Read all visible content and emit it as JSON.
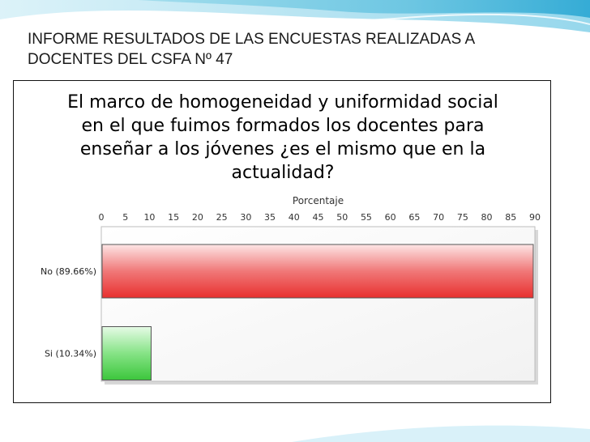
{
  "slide": {
    "title_line1": "INFORME RESULTADOS DE LAS ENCUESTAS REALIZADAS A",
    "title_line2": "DOCENTES DEL  CSFA Nº 47"
  },
  "chart_data": {
    "type": "bar",
    "orientation": "horizontal",
    "title_lines": [
      "El marco de homogeneidad y uniformidad social",
      "en el que fuimos formados los docentes para",
      "enseñar a los jóvenes ¿es el mismo que en la",
      "actualidad?"
    ],
    "xlabel": "Porcentaje",
    "xlim": [
      0,
      90
    ],
    "xticks": [
      "0",
      "5",
      "10",
      "15",
      "20",
      "25",
      "30",
      "35",
      "40",
      "45",
      "50",
      "55",
      "60",
      "65",
      "70",
      "75",
      "80",
      "85",
      "90"
    ],
    "categories": [
      "No (89.66%)",
      "Si (10.34%)"
    ],
    "values": [
      89.66,
      10.34
    ],
    "colors": [
      "#e8302f",
      "#3cc63c"
    ],
    "grid": false,
    "legend": "none"
  }
}
